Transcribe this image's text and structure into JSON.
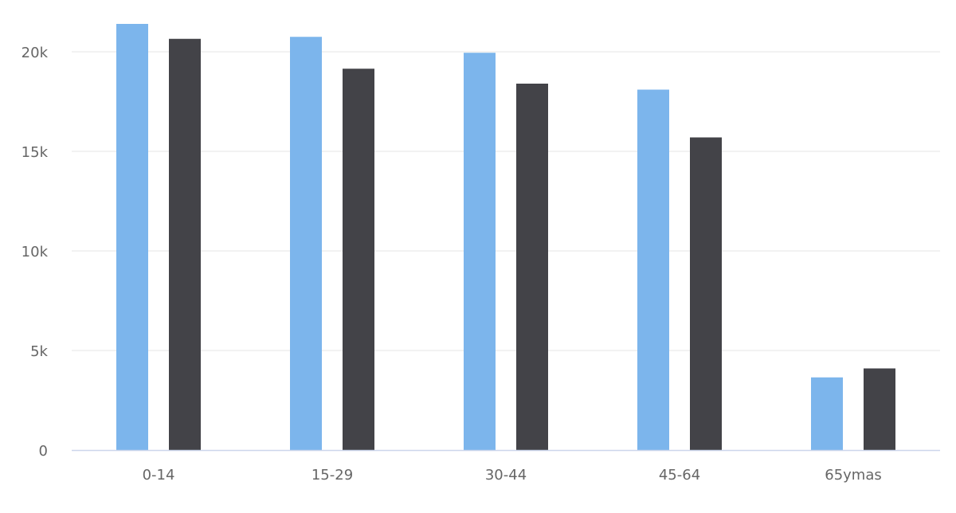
{
  "chart_data": {
    "type": "bar",
    "categories": [
      "0-14",
      "15-29",
      "30-44",
      "45-64",
      "65ymas"
    ],
    "series": [
      {
        "color": "#7cb5ec",
        "values": [
          21400,
          20750,
          19950,
          18100,
          3650
        ]
      },
      {
        "color": "#434348",
        "values": [
          20650,
          19150,
          18400,
          15700,
          4100
        ]
      }
    ],
    "yticks": [
      {
        "value": 0,
        "label": "0"
      },
      {
        "value": 5000,
        "label": "5k"
      },
      {
        "value": 10000,
        "label": "10k"
      },
      {
        "value": 15000,
        "label": "15k"
      },
      {
        "value": 20000,
        "label": "20k"
      }
    ],
    "ylim": [
      0,
      21400
    ],
    "grid": true,
    "legend": "none",
    "gridColor": "#e6e6e6",
    "axisColor": "#ccd6eb"
  }
}
